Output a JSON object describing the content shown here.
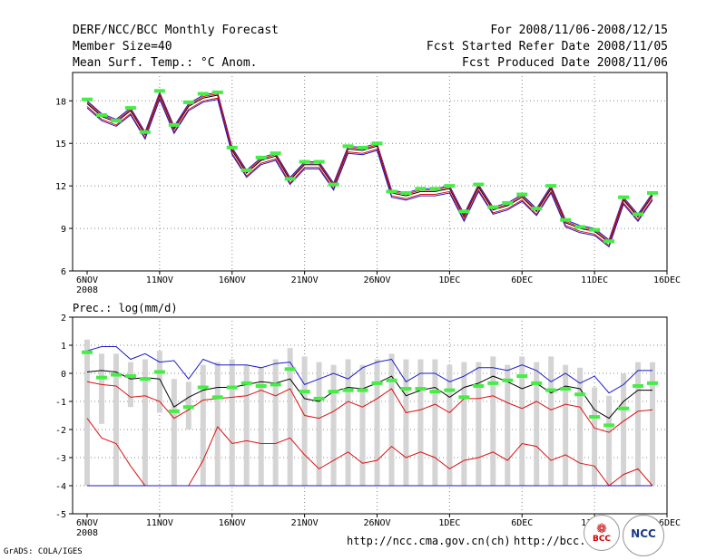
{
  "header": {
    "title": "DERF/NCC/BCC Monthly Forecast",
    "member_size": "Member Size=40",
    "variable": "Mean Surf. Temp.: °C Anom.",
    "period": "For 2008/11/06-2008/12/15",
    "refer_date": "Fcst Started Refer Date 2008/11/05",
    "produced_date": "Fcst Produced Date 2008/11/06"
  },
  "footer": {
    "url_ncc": "http://ncc.cma.gov.cn(ch)",
    "url_bcc": "http://bcc.",
    "grads_credit": "GrADS: COLA/IGES",
    "logo_bcc": "BCC",
    "logo_ncc": "NCC"
  },
  "colors": {
    "blue": "#1a1acc",
    "red": "#dd1111",
    "green": "#44ee44",
    "box": "#d4d4d4",
    "black": "#000000"
  },
  "chart_data": [
    {
      "type": "line",
      "title": "",
      "ylabel": "Mean Surf. Temp.: °C Anom.",
      "ylim": [
        6,
        20
      ],
      "yticks": [
        6,
        9,
        12,
        15,
        18
      ],
      "xlim": [
        0.5,
        40.5
      ],
      "xticks": [
        {
          "day": 1,
          "label": "6NOV",
          "sub": "2008"
        },
        {
          "day": 6,
          "label": "11NOV"
        },
        {
          "day": 11,
          "label": "16NOV"
        },
        {
          "day": 16,
          "label": "21NOV"
        },
        {
          "day": 21,
          "label": "26NOV"
        },
        {
          "day": 26,
          "label": "1DEC"
        },
        {
          "day": 31,
          "label": "6DEC"
        },
        {
          "day": 36,
          "label": "11DEC"
        },
        {
          "day": 41,
          "label": "16DEC"
        }
      ],
      "x": [
        1,
        2,
        3,
        4,
        5,
        6,
        7,
        8,
        9,
        10,
        11,
        12,
        13,
        14,
        15,
        16,
        17,
        18,
        19,
        20,
        21,
        22,
        23,
        24,
        25,
        26,
        27,
        28,
        29,
        30,
        31,
        32,
        33,
        34,
        35,
        36,
        37,
        38,
        39,
        40
      ],
      "series": [
        {
          "name": "mean",
          "color": "black",
          "values": [
            17.8,
            16.9,
            16.5,
            17.3,
            15.6,
            18.4,
            16.0,
            17.6,
            18.2,
            18.4,
            14.5,
            12.9,
            13.8,
            14.1,
            12.4,
            13.5,
            13.5,
            12.0,
            14.6,
            14.5,
            14.8,
            11.5,
            11.3,
            11.6,
            11.6,
            11.8,
            9.8,
            11.9,
            10.3,
            10.6,
            11.2,
            10.2,
            11.8,
            9.4,
            9.0,
            8.8,
            8.0,
            11.0,
            9.8,
            11.3
          ]
        },
        {
          "name": "upper",
          "color": "blue",
          "values": [
            18.0,
            17.1,
            16.7,
            17.5,
            15.8,
            18.6,
            16.2,
            17.8,
            18.4,
            18.6,
            14.7,
            13.1,
            14.0,
            14.3,
            12.6,
            13.7,
            13.7,
            12.2,
            14.8,
            14.7,
            15.0,
            11.7,
            11.5,
            11.8,
            11.8,
            12.0,
            10.0,
            12.1,
            10.5,
            10.8,
            11.4,
            10.4,
            12.0,
            9.6,
            9.2,
            9.0,
            8.2,
            11.2,
            10.0,
            11.5
          ]
        },
        {
          "name": "upper2",
          "color": "red",
          "values": [
            17.9,
            17.0,
            16.6,
            17.4,
            15.7,
            18.5,
            16.1,
            17.7,
            18.3,
            18.5,
            14.6,
            13.0,
            13.9,
            14.2,
            12.5,
            13.6,
            13.6,
            12.1,
            14.7,
            14.6,
            14.9,
            11.6,
            11.4,
            11.7,
            11.7,
            11.9,
            9.9,
            12.0,
            10.4,
            10.7,
            11.3,
            10.3,
            11.9,
            9.5,
            9.1,
            8.9,
            8.1,
            11.1,
            9.9,
            11.4
          ]
        },
        {
          "name": "lower",
          "color": "red",
          "values": [
            17.6,
            16.7,
            16.3,
            17.1,
            15.4,
            18.2,
            15.8,
            17.4,
            18.0,
            18.2,
            14.3,
            12.7,
            13.6,
            13.9,
            12.2,
            13.3,
            13.3,
            11.8,
            14.4,
            14.3,
            14.6,
            11.3,
            11.1,
            11.4,
            11.4,
            11.6,
            9.6,
            11.7,
            10.1,
            10.4,
            11.0,
            10.0,
            11.6,
            9.2,
            8.8,
            8.6,
            7.8,
            10.8,
            9.6,
            11.1
          ]
        },
        {
          "name": "lower2",
          "color": "blue",
          "values": [
            17.5,
            16.6,
            16.2,
            17.0,
            15.3,
            18.1,
            15.7,
            17.3,
            17.9,
            18.1,
            14.2,
            12.6,
            13.5,
            13.8,
            12.1,
            13.2,
            13.2,
            11.7,
            14.3,
            14.2,
            14.5,
            11.2,
            11.0,
            11.3,
            11.3,
            11.5,
            9.5,
            11.6,
            10.0,
            10.3,
            10.9,
            9.9,
            11.5,
            9.1,
            8.7,
            8.5,
            7.7,
            10.7,
            9.5,
            11.0
          ]
        }
      ],
      "markers": {
        "name": "observed",
        "color": "green",
        "values": [
          18.1,
          17.0,
          16.6,
          17.5,
          15.8,
          18.7,
          16.3,
          17.9,
          18.5,
          18.6,
          14.7,
          13.1,
          14.0,
          14.3,
          12.5,
          13.7,
          13.7,
          12.1,
          14.8,
          14.7,
          15.0,
          11.6,
          11.5,
          11.8,
          11.8,
          12.0,
          10.2,
          12.1,
          10.5,
          10.8,
          11.4,
          10.4,
          12.0,
          9.6,
          9.1,
          8.9,
          8.1,
          11.2,
          10.0,
          11.5
        ]
      }
    },
    {
      "type": "line",
      "title": "Prec.: log(mm/d)",
      "ylim": [
        -5,
        2
      ],
      "yticks": [
        -5,
        -4,
        -3,
        -2,
        -1,
        0,
        1,
        2
      ],
      "xlim": [
        0.5,
        40.5
      ],
      "xticks": [
        {
          "day": 1,
          "label": "6NOV",
          "sub": "2008"
        },
        {
          "day": 6,
          "label": "11NOV"
        },
        {
          "day": 11,
          "label": "16NOV"
        },
        {
          "day": 16,
          "label": "21NOV"
        },
        {
          "day": 21,
          "label": "26NOV"
        },
        {
          "day": 26,
          "label": "1DEC"
        },
        {
          "day": 31,
          "label": "6DEC"
        },
        {
          "day": 36,
          "label": "11DEC"
        },
        {
          "day": 41,
          "label": "16DEC"
        }
      ],
      "x": [
        1,
        2,
        3,
        4,
        5,
        6,
        7,
        8,
        9,
        10,
        11,
        12,
        13,
        14,
        15,
        16,
        17,
        18,
        19,
        20,
        21,
        22,
        23,
        24,
        25,
        26,
        27,
        28,
        29,
        30,
        31,
        32,
        33,
        34,
        35,
        36,
        37,
        38,
        39,
        40
      ],
      "boxes": {
        "color": "box",
        "top": [
          1.2,
          0.7,
          0.7,
          0.4,
          0.5,
          0.8,
          -0.2,
          -0.3,
          0.3,
          0.4,
          0.5,
          0.3,
          0.2,
          0.5,
          0.9,
          0.6,
          0.4,
          0.3,
          0.5,
          0.3,
          0.5,
          0.7,
          0.5,
          0.5,
          0.5,
          0.3,
          0.4,
          0.4,
          0.6,
          0.3,
          0.6,
          0.4,
          0.6,
          0.3,
          0.2,
          -0.5,
          -0.8,
          0.0,
          0.4,
          0.4
        ],
        "bottom": [
          -4.0,
          -1.8,
          -4.0,
          -1.2,
          -4.0,
          -1.4,
          -4.0,
          -2.0,
          -4.0,
          -4.0,
          -4.0,
          -4.0,
          -4.0,
          -4.0,
          -4.0,
          -4.0,
          -4.0,
          -4.0,
          -4.0,
          -4.0,
          -4.0,
          -4.0,
          -4.0,
          -4.0,
          -4.0,
          -4.0,
          -4.0,
          -4.0,
          -4.0,
          -4.0,
          -4.0,
          -4.0,
          -4.0,
          -4.0,
          -4.0,
          -4.0,
          -4.0,
          -4.0,
          -4.0,
          -4.0
        ]
      },
      "series": [
        {
          "name": "max",
          "color": "blue",
          "values": [
            0.8,
            0.95,
            0.95,
            0.5,
            0.7,
            0.4,
            0.45,
            -0.2,
            0.5,
            0.3,
            0.3,
            0.3,
            0.2,
            0.35,
            0.4,
            -0.4,
            -0.2,
            0.0,
            -0.2,
            0.2,
            0.4,
            0.5,
            -0.3,
            0.0,
            0.0,
            -0.3,
            -0.1,
            0.2,
            0.2,
            0.1,
            0.3,
            0.1,
            -0.3,
            0.0,
            -0.35,
            -0.1,
            -0.7,
            -0.4,
            0.1,
            0.1
          ]
        },
        {
          "name": "mean",
          "color": "black",
          "values": [
            0.05,
            0.1,
            0.05,
            -0.2,
            -0.15,
            -0.2,
            -1.2,
            -0.85,
            -0.6,
            -0.5,
            -0.5,
            -0.4,
            -0.3,
            -0.35,
            -0.2,
            -0.9,
            -1.0,
            -0.65,
            -0.5,
            -0.55,
            -0.35,
            -0.1,
            -0.8,
            -0.6,
            -0.5,
            -0.85,
            -0.5,
            -0.35,
            -0.1,
            -0.3,
            -0.55,
            -0.35,
            -0.7,
            -0.45,
            -0.55,
            -1.3,
            -1.6,
            -1.0,
            -0.6,
            -0.6
          ]
        },
        {
          "name": "p33",
          "color": "red",
          "values": [
            -0.3,
            -0.4,
            -0.45,
            -0.85,
            -0.8,
            -1.0,
            -1.6,
            -1.3,
            -0.95,
            -0.9,
            -0.85,
            -0.8,
            -0.6,
            -0.8,
            -0.55,
            -1.5,
            -1.6,
            -1.35,
            -1.0,
            -1.2,
            -0.9,
            -0.55,
            -1.4,
            -1.3,
            -1.1,
            -1.4,
            -0.9,
            -0.9,
            -0.8,
            -1.05,
            -1.25,
            -1.0,
            -1.3,
            -1.1,
            -1.2,
            -1.95,
            -2.1,
            -1.7,
            -1.35,
            -1.3
          ]
        },
        {
          "name": "min",
          "color": "red",
          "values": [
            -1.6,
            -2.3,
            -2.5,
            -3.3,
            -4.0,
            -4.0,
            -4.0,
            -4.0,
            -3.1,
            -1.9,
            -2.5,
            -2.4,
            -2.5,
            -2.5,
            -2.3,
            -2.9,
            -3.4,
            -3.1,
            -2.8,
            -3.2,
            -3.1,
            -2.6,
            -3.0,
            -2.8,
            -3.0,
            -3.4,
            -3.1,
            -3.0,
            -2.8,
            -3.1,
            -2.5,
            -2.6,
            -3.1,
            -2.9,
            -3.2,
            -3.3,
            -4.0,
            -3.6,
            -3.4,
            -4.0
          ]
        },
        {
          "name": "floor",
          "color": "blue",
          "values": [
            -4.0,
            -4.0,
            -4.0,
            -4.0,
            -4.0,
            -4.0,
            -4.0,
            -4.0,
            -4.0,
            -4.0,
            -4.0,
            -4.0,
            -4.0,
            -4.0,
            -4.0,
            -4.0,
            -4.0,
            -4.0,
            -4.0,
            -4.0,
            -4.0,
            -4.0,
            -4.0,
            -4.0,
            -4.0,
            -4.0,
            -4.0,
            -4.0,
            -4.0,
            -4.0,
            -4.0,
            -4.0,
            -4.0,
            -4.0,
            -4.0,
            -4.0,
            -4.0,
            -4.0,
            -4.0,
            -4.0
          ]
        }
      ],
      "markers": {
        "name": "observed",
        "color": "green",
        "values": [
          0.75,
          -0.15,
          -0.05,
          -0.1,
          -0.2,
          0.05,
          -1.35,
          -1.2,
          -0.5,
          -0.85,
          -0.5,
          -0.35,
          -0.45,
          -0.4,
          0.15,
          -0.65,
          -0.9,
          -0.65,
          -0.6,
          -0.6,
          -0.35,
          -0.25,
          -0.55,
          -0.55,
          -0.65,
          -0.6,
          -0.85,
          -0.45,
          -0.35,
          -0.25,
          -0.1,
          -0.35,
          -0.6,
          -0.55,
          -0.75,
          -1.55,
          -1.85,
          -1.25,
          -0.45,
          -0.35
        ]
      }
    }
  ]
}
